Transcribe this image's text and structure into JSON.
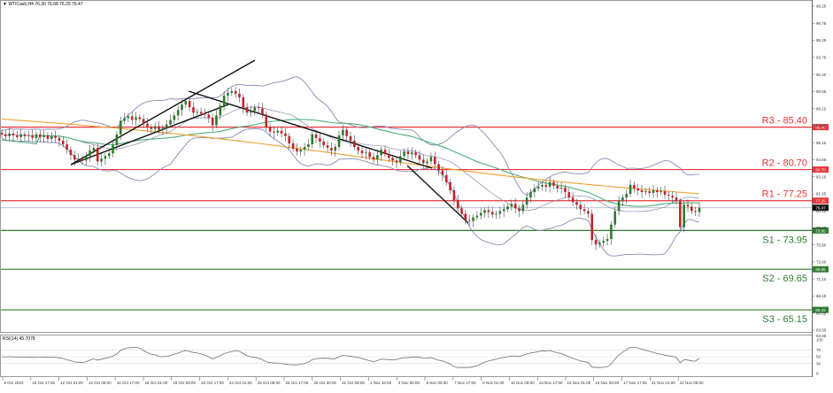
{
  "header": {
    "symbol_line": "▼ WTICash,H4  76.30 76.68 76.29 76.47"
  },
  "rsi": {
    "label": "RSI(14) 45.7078"
  },
  "colors": {
    "resistance": "#e8343a",
    "support": "#2f7d2f",
    "bollinger": "#8a8ab8",
    "ma_fast": "#4caf7a",
    "ma_slow": "#f0a030",
    "bull": "#2d7a2d",
    "bear": "#c0242b",
    "trendline": "#111111",
    "current_price_bg": "#111111",
    "rsi_line": "#707070"
  },
  "chart_data": {
    "type": "candlestick",
    "title": "WTICash, H4",
    "ohlc_header": {
      "open": 76.3,
      "high": 76.68,
      "low": 76.29,
      "close": 76.47
    },
    "y_axis": {
      "ylim": [
        63.0,
        99.0
      ],
      "ticks": [
        "98.25",
        "96.75",
        "95.25",
        "93.75",
        "92.20",
        "90.65",
        "89.15",
        "87.65",
        "86.15",
        "84.65",
        "83.15",
        "81.65",
        "80.15",
        "78.60",
        "75.60",
        "72.60",
        "71.10",
        "68.10",
        "66.55",
        "63.50"
      ]
    },
    "x_axis": {
      "tick_labels": [
        "9 Oct 2023",
        "10 Oct 17:00",
        "12 Oct 01:00",
        "13 Oct 09:00",
        "16 Oct 17:00",
        "18 Oct 01:00",
        "19 Oct 09:00",
        "20 Oct 17:00",
        "24 Oct 01:00",
        "25 Oct 09:00",
        "26 Oct 17:00",
        "30 Oct 00:00",
        "31 Oct 08:00",
        "1 Nov 16:00",
        "3 Nov 00:00",
        "6 Nov 09:00",
        "7 Nov 17:00",
        "9 Nov 01:00",
        "10 Nov 09:00",
        "13 Nov 17:00",
        "15 Nov 01:00",
        "16 Nov 09:00",
        "17 Nov 17:00",
        "21 Nov 01:00",
        "22 Nov 09:00"
      ]
    },
    "levels": [
      {
        "name": "R3",
        "label": "R3 - 85.40",
        "value": 85.4,
        "tag": "85.40",
        "kind": "resistance"
      },
      {
        "name": "R2",
        "label": "R2 - 80.70",
        "value": 80.7,
        "tag": "80.70",
        "kind": "resistance"
      },
      {
        "name": "R1",
        "label": "R1 - 77.25",
        "value": 77.25,
        "tag": "77.25",
        "kind": "resistance"
      },
      {
        "name": "S1",
        "label": "S1 - 73.95",
        "value": 73.95,
        "tag": "73.95",
        "kind": "support"
      },
      {
        "name": "S2",
        "label": "S2 - 69.65",
        "value": 69.65,
        "tag": "69.65",
        "kind": "support"
      },
      {
        "name": "S3",
        "label": "S3 - 65.15",
        "value": 65.15,
        "tag": "65.15",
        "kind": "support"
      }
    ],
    "current_price": {
      "value": 76.47,
      "tag": "76.47"
    },
    "close_series": [
      84.6,
      84.4,
      84.7,
      84.5,
      84.3,
      84.6,
      84.4,
      84.5,
      84.2,
      84.6,
      84.3,
      84.5,
      84.1,
      84.4,
      84.2,
      83.9,
      83.5,
      82.9,
      82.3,
      81.8,
      81.9,
      81.7,
      82.2,
      82.8,
      83.1,
      81.6,
      81.9,
      82.2,
      82.5,
      83.4,
      84.6,
      86.1,
      86.4,
      86.6,
      86.2,
      86.5,
      86.3,
      85.8,
      85.4,
      85.2,
      85.5,
      85.1,
      85.3,
      85.7,
      86.2,
      86.7,
      87.3,
      87.9,
      88.3,
      87.6,
      87.0,
      87.1,
      86.9,
      86.8,
      86.4,
      85.6,
      86.7,
      87.8,
      88.9,
      89.2,
      89.4,
      89.1,
      88.7,
      87.6,
      87.0,
      87.2,
      87.6,
      87.5,
      86.8,
      85.4,
      84.9,
      84.8,
      85.0,
      84.7,
      84.4,
      83.6,
      83.0,
      82.7,
      82.9,
      83.2,
      83.5,
      84.6,
      84.2,
      83.8,
      83.4,
      83.1,
      82.8,
      83.2,
      84.5,
      85.1,
      84.4,
      83.9,
      83.2,
      82.8,
      82.5,
      82.6,
      82.1,
      81.8,
      82.3,
      82.9,
      82.4,
      82.0,
      81.7,
      81.5,
      82.2,
      82.7,
      82.4,
      82.6,
      82.3,
      81.8,
      81.4,
      81.6,
      82.1,
      81.3,
      80.6,
      80.1,
      79.3,
      78.4,
      77.3,
      76.4,
      75.8,
      75.1,
      75.0,
      75.4,
      75.6,
      75.9,
      76.2,
      76.0,
      75.7,
      75.8,
      76.1,
      76.3,
      76.6,
      76.9,
      76.4,
      76.1,
      76.8,
      77.6,
      78.2,
      78.6,
      78.8,
      79.0,
      78.8,
      79.3,
      78.9,
      78.6,
      78.7,
      78.2,
      77.6,
      77.1,
      76.8,
      76.3,
      76.1,
      75.8,
      72.9,
      72.4,
      72.6,
      72.8,
      73.0,
      74.6,
      76.1,
      77.2,
      77.6,
      78.0,
      79.0,
      78.6,
      78.4,
      78.2,
      78.3,
      78.1,
      78.4,
      78.2,
      78.3,
      77.9,
      77.8,
      77.6,
      77.2,
      74.3,
      76.8,
      76.6,
      76.1,
      76.0,
      76.47
    ],
    "rsi": {
      "levels": [
        70,
        50,
        30
      ],
      "ylim": [
        0,
        100
      ],
      "tick_labels": [
        "100",
        "70",
        "50",
        "30",
        "0"
      ],
      "last_value": 45.7078
    },
    "annotations": [
      "Ascending channel (Oct 12 – Oct 20)",
      "Descending trendline from Oct 19 high",
      "Steep descending trendline (Nov 3 – Nov 7)"
    ]
  }
}
